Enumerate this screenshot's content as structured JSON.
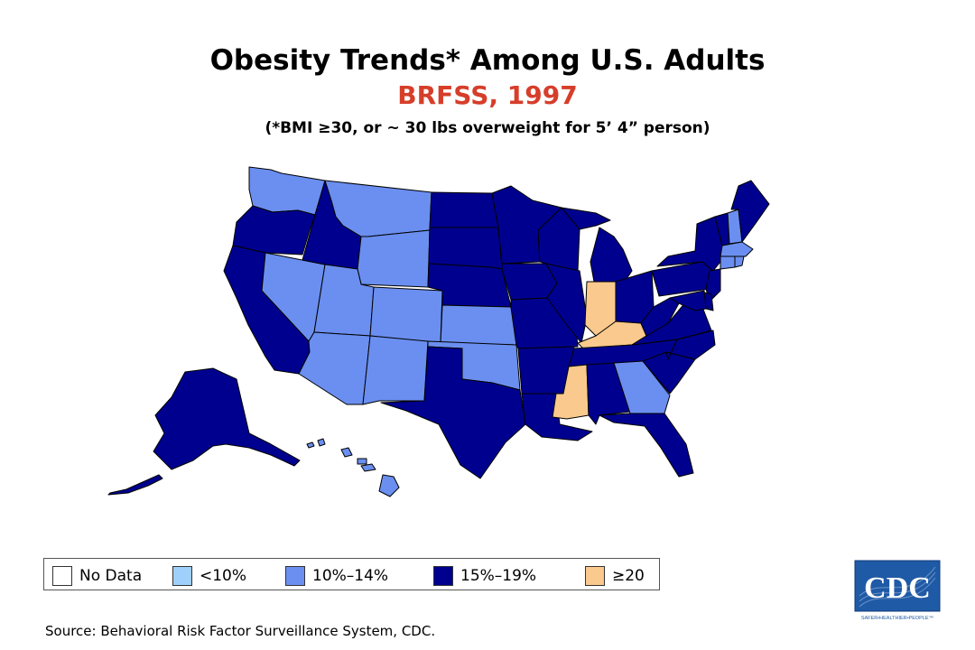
{
  "header": {
    "title": "Obesity Trends* Among U.S. Adults",
    "subtitle": "BRFSS, 1997",
    "footnote": "(*BMI ≥30, or ~ 30 lbs overweight for 5’ 4” person)"
  },
  "colors": {
    "no_data": "#ffffff",
    "lt10": "#9fd0fc",
    "p10_14": "#6b8ff0",
    "p15_19": "#00008f",
    "ge20": "#f9c98d",
    "border": "#000000",
    "title_accent": "#d63e2a"
  },
  "legend": [
    {
      "label": "No Data",
      "key": "no_data"
    },
    {
      "label": "<10%",
      "key": "lt10"
    },
    {
      "label": "10%–14%",
      "key": "p10_14"
    },
    {
      "label": "15%–19%",
      "key": "p15_19"
    },
    {
      "label": "≥20",
      "key": "ge20"
    }
  ],
  "states": {
    "WA": "p10_14",
    "OR": "p15_19",
    "CA": "p15_19",
    "NV": "p10_14",
    "ID": "p15_19",
    "MT": "p10_14",
    "WY": "p10_14",
    "UT": "p10_14",
    "AZ": "p10_14",
    "CO": "p10_14",
    "NM": "p10_14",
    "ND": "p15_19",
    "SD": "p15_19",
    "NE": "p15_19",
    "KS": "p10_14",
    "OK": "p10_14",
    "TX": "p15_19",
    "MN": "p15_19",
    "IA": "p15_19",
    "MO": "p15_19",
    "AR": "p15_19",
    "LA": "p15_19",
    "WI": "p15_19",
    "IL": "p15_19",
    "MI": "p15_19",
    "IN": "ge20",
    "KY": "ge20",
    "TN": "p15_19",
    "MS": "ge20",
    "AL": "p15_19",
    "GA": "p10_14",
    "FL": "p15_19",
    "SC": "p15_19",
    "NC": "p15_19",
    "VA": "p15_19",
    "WV": "p15_19",
    "OH": "p15_19",
    "PA": "p15_19",
    "NY": "p15_19",
    "VT": "p15_19",
    "NH": "p10_14",
    "ME": "p15_19",
    "MA": "p10_14",
    "RI": "p10_14",
    "CT": "p10_14",
    "NJ": "p15_19",
    "DE": "p15_19",
    "MD": "p15_19",
    "AK": "p15_19",
    "HI": "p10_14"
  },
  "source": "Source: Behavioral Risk Factor Surveillance System, CDC.",
  "logo": {
    "text": "CDC",
    "tagline": "SAFER•HEALTHIER•PEOPLE™"
  }
}
